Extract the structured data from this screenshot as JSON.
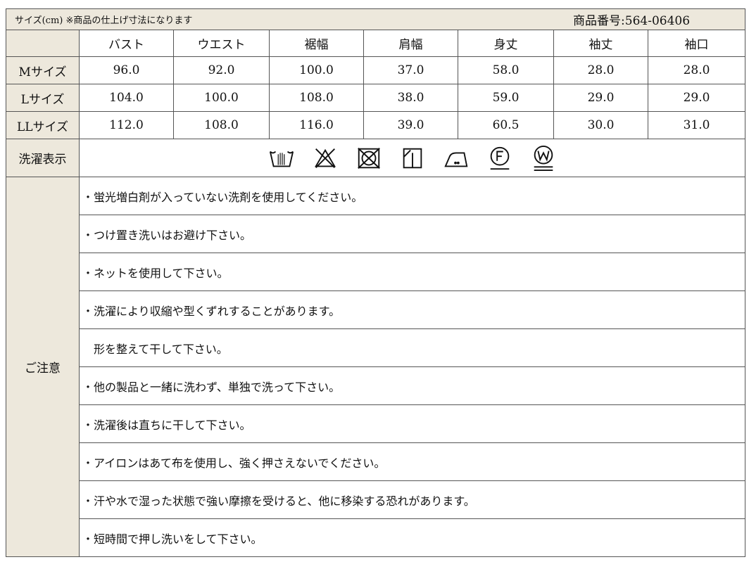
{
  "header": {
    "title": "サイズ(cm) ※商品の仕上げ寸法になります",
    "product_no": "商品番号:564-06406"
  },
  "columns": [
    "バスト",
    "ウエスト",
    "裾幅",
    "肩幅",
    "身丈",
    "袖丈",
    "袖口"
  ],
  "rows": [
    {
      "label": "Mサイズ",
      "values": [
        "96.0",
        "92.0",
        "100.0",
        "37.0",
        "58.0",
        "28.0",
        "28.0"
      ]
    },
    {
      "label": "Lサイズ",
      "values": [
        "104.0",
        "100.0",
        "108.0",
        "38.0",
        "59.0",
        "29.0",
        "29.0"
      ]
    },
    {
      "label": "LLサイズ",
      "values": [
        "112.0",
        "108.0",
        "116.0",
        "39.0",
        "60.5",
        "30.0",
        "31.0"
      ]
    }
  ],
  "wash": {
    "label": "洗濯表示",
    "icons": [
      "hand-wash-icon",
      "no-bleach-icon",
      "no-tumble-dry-icon",
      "drip-dry-shade-icon",
      "iron-low-icon",
      "dry-clean-f-icon",
      "wet-clean-w-icon"
    ]
  },
  "notes": {
    "label": "ご注意",
    "items": [
      "・蛍光増白剤が入っていない洗剤を使用してください。",
      "・つけ置き洗いはお避け下さい。",
      "・ネットを使用して下さい。",
      "・洗濯により収縮や型くずれすることがあります。",
      "　形を整えて干して下さい。",
      "・他の製品と一緒に洗わず、単独で洗って下さい。",
      "・洗濯後は直ちに干して下さい。",
      "・アイロンはあて布を使用し、強く押さえないでください。",
      "・汗や水で湿った状態で強い摩擦を受けると、他に移染する恐れがあります。",
      "・短時間で押し洗いをして下さい。"
    ]
  }
}
